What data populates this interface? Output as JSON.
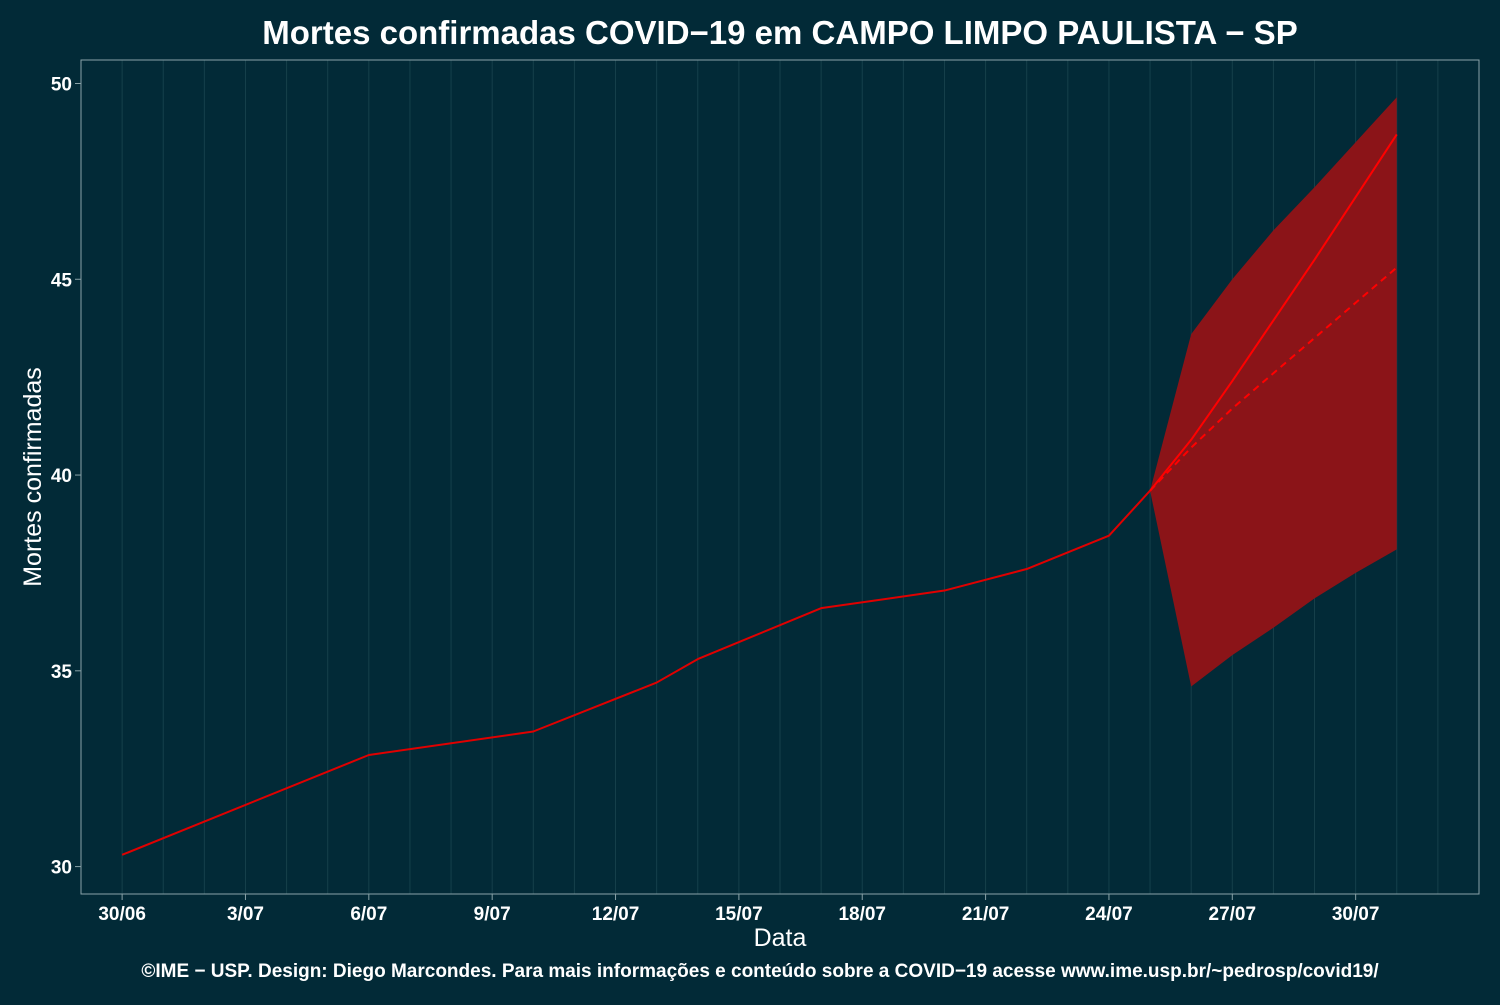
{
  "chart_data": {
    "type": "line",
    "title": "Mortes confirmadas COVID−19 em CAMPO LIMPO PAULISTA − SP",
    "xlabel": "Data",
    "ylabel": "Mortes confirmadas",
    "caption": "©IME − USP. Design: Diego Marcondes. Para mais informações e conteúdo sobre a COVID−19 acesse www.ime.usp.br/~pedrosp/covid19/",
    "x_ticks": [
      "30/06",
      "3/07",
      "6/07",
      "9/07",
      "12/07",
      "15/07",
      "18/07",
      "21/07",
      "24/07",
      "27/07",
      "30/07"
    ],
    "y_ticks": [
      30,
      35,
      40,
      45,
      50
    ],
    "xlim": [
      "2020-06-29",
      "2020-08-02"
    ],
    "ylim": [
      29.3,
      50.6
    ],
    "grid": true,
    "series": [
      {
        "style": "observed",
        "color": "#e00000",
        "points": [
          [
            "2020-06-30",
            30.3
          ],
          [
            "2020-07-06",
            32.85
          ],
          [
            "2020-07-10",
            33.45
          ],
          [
            "2020-07-13",
            34.7
          ],
          [
            "2020-07-14",
            35.3
          ],
          [
            "2020-07-17",
            36.6
          ],
          [
            "2020-07-20",
            37.05
          ],
          [
            "2020-07-22",
            37.6
          ],
          [
            "2020-07-24",
            38.45
          ],
          [
            "2020-07-25",
            39.6
          ]
        ]
      },
      {
        "style": "forecast-solid",
        "color": "#ff0000",
        "points": [
          [
            "2020-07-25",
            39.6
          ],
          [
            "2020-07-26",
            40.9
          ],
          [
            "2020-07-27",
            42.4
          ],
          [
            "2020-07-28",
            43.95
          ],
          [
            "2020-07-29",
            45.5
          ],
          [
            "2020-07-30",
            47.1
          ],
          [
            "2020-07-31",
            48.7
          ]
        ]
      },
      {
        "style": "forecast-dashed",
        "color": "#ff0000",
        "points": [
          [
            "2020-07-25",
            39.6
          ],
          [
            "2020-07-26",
            40.7
          ],
          [
            "2020-07-27",
            41.7
          ],
          [
            "2020-07-28",
            42.6
          ],
          [
            "2020-07-29",
            43.5
          ],
          [
            "2020-07-30",
            44.4
          ],
          [
            "2020-07-31",
            45.3
          ]
        ]
      }
    ],
    "band": {
      "color": "#8b1418",
      "points": [
        [
          "2020-07-25",
          39.6,
          39.6
        ],
        [
          "2020-07-26",
          34.6,
          43.6
        ],
        [
          "2020-07-27",
          35.4,
          45.0
        ],
        [
          "2020-07-28",
          36.1,
          46.25
        ],
        [
          "2020-07-29",
          36.85,
          47.35
        ],
        [
          "2020-07-30",
          37.5,
          48.5
        ],
        [
          "2020-07-31",
          38.1,
          49.65
        ]
      ]
    },
    "colors": {
      "background": "#022a37",
      "panel_border": "#8aa3a8",
      "grid": "#16404b",
      "text": "#ffffff"
    }
  }
}
